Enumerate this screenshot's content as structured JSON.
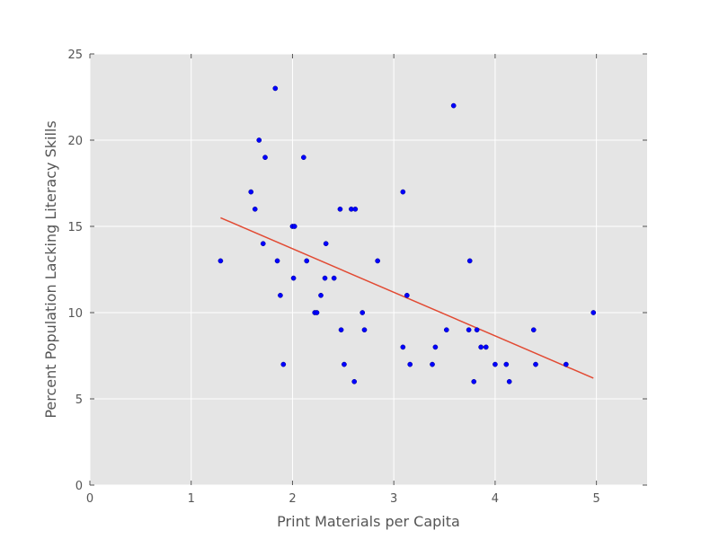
{
  "chart_data": {
    "type": "scatter",
    "title": "",
    "xlabel": "Print Materials per Capita",
    "ylabel": "Percent Population Lacking Literacy Skills",
    "xlim": [
      0,
      5.5
    ],
    "ylim": [
      0,
      25
    ],
    "xticks": [
      0,
      1,
      2,
      3,
      4,
      5
    ],
    "yticks": [
      0,
      5,
      10,
      15,
      20,
      25
    ],
    "grid": true,
    "legend": "none",
    "colors": {
      "points": "#0000ff",
      "trend_line": "#e24a33",
      "plot_background": "#e5e5e5",
      "grid": "#ffffff"
    },
    "series": [
      {
        "type": "scatter",
        "points": [
          [
            1.29,
            13
          ],
          [
            1.59,
            17
          ],
          [
            1.63,
            16
          ],
          [
            1.67,
            20
          ],
          [
            1.71,
            14
          ],
          [
            1.73,
            19
          ],
          [
            1.83,
            23
          ],
          [
            1.85,
            13
          ],
          [
            1.88,
            11
          ],
          [
            1.91,
            7
          ],
          [
            2.0,
            15
          ],
          [
            2.02,
            15
          ],
          [
            2.01,
            12
          ],
          [
            2.11,
            19
          ],
          [
            2.14,
            13
          ],
          [
            2.22,
            10
          ],
          [
            2.24,
            10
          ],
          [
            2.28,
            11
          ],
          [
            2.32,
            12
          ],
          [
            2.33,
            14
          ],
          [
            2.41,
            12
          ],
          [
            2.47,
            16
          ],
          [
            2.48,
            9
          ],
          [
            2.51,
            7
          ],
          [
            2.58,
            16
          ],
          [
            2.62,
            16
          ],
          [
            2.61,
            6
          ],
          [
            2.69,
            10
          ],
          [
            2.71,
            9
          ],
          [
            2.84,
            13
          ],
          [
            3.09,
            8
          ],
          [
            3.09,
            17
          ],
          [
            3.13,
            11
          ],
          [
            3.16,
            7
          ],
          [
            3.38,
            7
          ],
          [
            3.41,
            8
          ],
          [
            3.52,
            9
          ],
          [
            3.59,
            22
          ],
          [
            3.74,
            9
          ],
          [
            3.75,
            13
          ],
          [
            3.79,
            6
          ],
          [
            3.82,
            9
          ],
          [
            3.86,
            8
          ],
          [
            3.91,
            8
          ],
          [
            4.0,
            7
          ],
          [
            4.11,
            7
          ],
          [
            4.14,
            6
          ],
          [
            4.38,
            9
          ],
          [
            4.4,
            7
          ],
          [
            4.7,
            7
          ],
          [
            4.97,
            10
          ]
        ]
      },
      {
        "type": "line",
        "points": [
          [
            1.29,
            15.5
          ],
          [
            4.97,
            6.2
          ]
        ]
      }
    ]
  }
}
